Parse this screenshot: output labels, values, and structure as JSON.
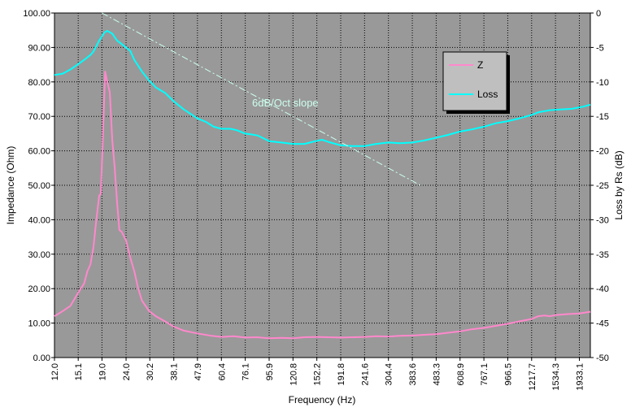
{
  "chart_data": {
    "type": "line",
    "xlabel": "Frequency (Hz)",
    "ylabel": "Impedance (Ohm)",
    "y2label": "Loss by Rs (dB)",
    "x_scale": "log",
    "x_ticks": [
      "12.0",
      "15.1",
      "19.0",
      "24.0",
      "30.2",
      "38.1",
      "47.9",
      "60.4",
      "76.1",
      "95.9",
      "120.8",
      "152.2",
      "191.8",
      "241.6",
      "304.4",
      "383.6",
      "483.3",
      "608.9",
      "767.1",
      "966.5",
      "1217.7",
      "1534.3",
      "1933.1"
    ],
    "xlim": [
      12.0,
      2150.0
    ],
    "ylim": [
      0,
      100
    ],
    "y_ticks": [
      "0.00",
      "10.00",
      "20.00",
      "30.00",
      "40.00",
      "50.00",
      "60.00",
      "70.00",
      "80.00",
      "90.00",
      "100.00"
    ],
    "y2lim": [
      -50,
      0
    ],
    "y2_ticks": [
      "0",
      "-5",
      "-10",
      "-15",
      "-20",
      "-25",
      "-30",
      "-35",
      "-40",
      "-45",
      "-50"
    ],
    "grid": true,
    "plot_background": "#999999",
    "legend_position": "top-right",
    "annotation": "6dB/Oct slope",
    "series": [
      {
        "name": "Z",
        "axis": "left",
        "color": "#ff88cc",
        "x": [
          12,
          13,
          14,
          15,
          16,
          16.5,
          17,
          17.5,
          18,
          18.5,
          18.8,
          19.2,
          19.6,
          20,
          20.5,
          21,
          21.5,
          22,
          22.5,
          23,
          24,
          25,
          26,
          27,
          28,
          30,
          32,
          35,
          38,
          42,
          47.9,
          55,
          60.4,
          68,
          76.1,
          85,
          95.9,
          108,
          120.8,
          135,
          152.2,
          170,
          191.8,
          215,
          241.6,
          270,
          304.4,
          340,
          383.6,
          430,
          483.3,
          540,
          608.9,
          680,
          767.1,
          860,
          966.5,
          1080,
          1217.7,
          1300,
          1380,
          1450,
          1534.3,
          1700,
          1933.1,
          2150
        ],
        "y": [
          12,
          13.5,
          15,
          18.5,
          21.5,
          25,
          27,
          32,
          40,
          47,
          47.5,
          65,
          83,
          80,
          77,
          63,
          55,
          45,
          37,
          36.5,
          34,
          29,
          25,
          20,
          16.5,
          13.5,
          12,
          10.5,
          9,
          7.8,
          7,
          6.3,
          6,
          6.2,
          5.8,
          5.9,
          5.6,
          5.7,
          5.6,
          5.9,
          6,
          5.9,
          5.8,
          5.9,
          6,
          6.2,
          6.1,
          6.3,
          6.4,
          6.6,
          6.8,
          7.2,
          7.6,
          8.2,
          8.6,
          9.2,
          9.8,
          10.5,
          11.2,
          12,
          12.2,
          12,
          12.3,
          12.6,
          12.8,
          13.3
        ]
      },
      {
        "name": "Loss",
        "axis": "right",
        "color": "#00ffff",
        "x": [
          12,
          13,
          14,
          15,
          16,
          17,
          17.5,
          18,
          18.5,
          19,
          19.5,
          20,
          21,
          22,
          23,
          24,
          25,
          26,
          28,
          30,
          32,
          35,
          38,
          42,
          47.9,
          52,
          56,
          60.4,
          66,
          70,
          76.1,
          80,
          86,
          95.9,
          108,
          120.8,
          135,
          150,
          160,
          170,
          191.8,
          215,
          241.6,
          270,
          304.4,
          340,
          383.6,
          430,
          483.3,
          540,
          608.9,
          680,
          767.1,
          860,
          966.5,
          1080,
          1217.7,
          1300,
          1450,
          1600,
          1800,
          2000,
          2150
        ],
        "y": [
          -9,
          -8.8,
          -8.2,
          -7.5,
          -6.8,
          -6.1,
          -5.6,
          -4.8,
          -4,
          -3.4,
          -2.8,
          -2.6,
          -3,
          -4,
          -4.5,
          -5,
          -5.5,
          -6.8,
          -8.5,
          -9.8,
          -10.8,
          -11.6,
          -12.8,
          -14,
          -15.3,
          -15.8,
          -16.5,
          -16.8,
          -16.8,
          -17,
          -17.5,
          -17.6,
          -17.8,
          -18.6,
          -18.8,
          -19,
          -19,
          -18.6,
          -18.4,
          -18.7,
          -19.2,
          -19.3,
          -19.3,
          -19,
          -18.8,
          -18.9,
          -18.8,
          -18.5,
          -18.1,
          -17.7,
          -17.2,
          -16.9,
          -16.5,
          -16,
          -15.7,
          -15.3,
          -14.8,
          -14.4,
          -14.1,
          -14,
          -13.9,
          -13.6,
          -13.3
        ]
      },
      {
        "name": "",
        "axis": "right",
        "color": "#ccffee",
        "dash": "dash-dot",
        "x": [
          19.0,
          414.0
        ],
        "y": [
          0,
          -25
        ]
      }
    ]
  }
}
